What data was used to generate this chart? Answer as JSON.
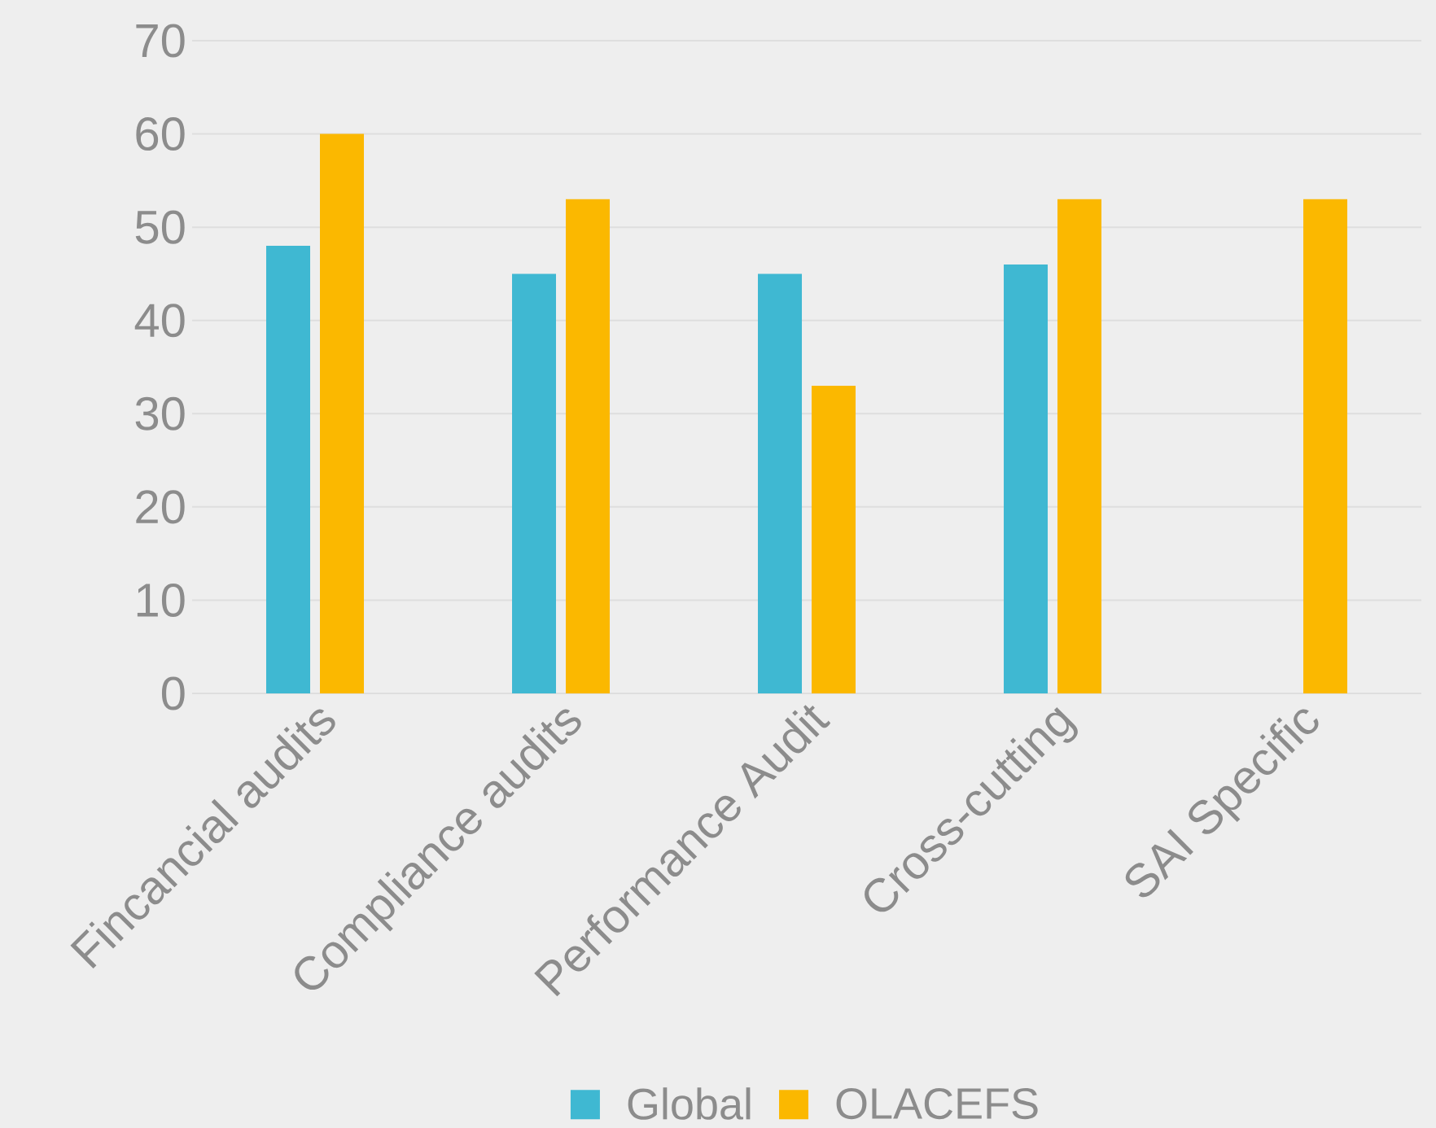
{
  "chart_data": {
    "type": "bar",
    "categories": [
      "Fincancial audits",
      "Compliance audits",
      "Performance  Audit",
      "Cross-cutting",
      "SAI Specific"
    ],
    "series": [
      {
        "name": "Global",
        "color": "#3fb8d2",
        "values": [
          48,
          45,
          45,
          46,
          null
        ]
      },
      {
        "name": "OLACEFS",
        "color": "#fbb800",
        "values": [
          60,
          53,
          33,
          53,
          53
        ]
      }
    ],
    "ylim": [
      0,
      70
    ],
    "yticks": [
      0,
      10,
      20,
      30,
      40,
      50,
      60,
      70
    ],
    "grid": "y",
    "legend": "bottom"
  }
}
